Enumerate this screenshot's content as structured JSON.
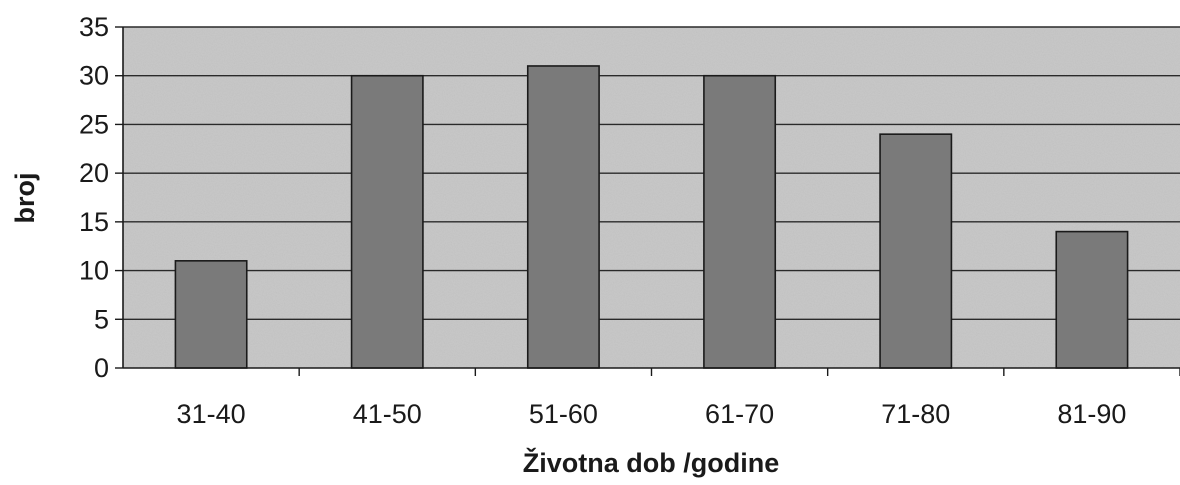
{
  "chart_data": {
    "type": "bar",
    "categories": [
      "31-40",
      "41-50",
      "51-60",
      "61-70",
      "71-80",
      "81-90"
    ],
    "values": [
      11,
      30,
      31,
      30,
      24,
      14
    ],
    "title": "",
    "xlabel": "Životna dob /godine",
    "ylabel": "broj",
    "ylim": [
      0,
      35
    ],
    "yticks": [
      0,
      5,
      10,
      15,
      20,
      25,
      30,
      35
    ],
    "grid": true,
    "legend": "none",
    "colors": {
      "bar_fill": "#7a7a7a",
      "bar_stroke": "#1a1a1a",
      "plot_background": "#c9c9c9",
      "grid": "#2a2a2a",
      "axis": "#1a1a1a"
    }
  }
}
